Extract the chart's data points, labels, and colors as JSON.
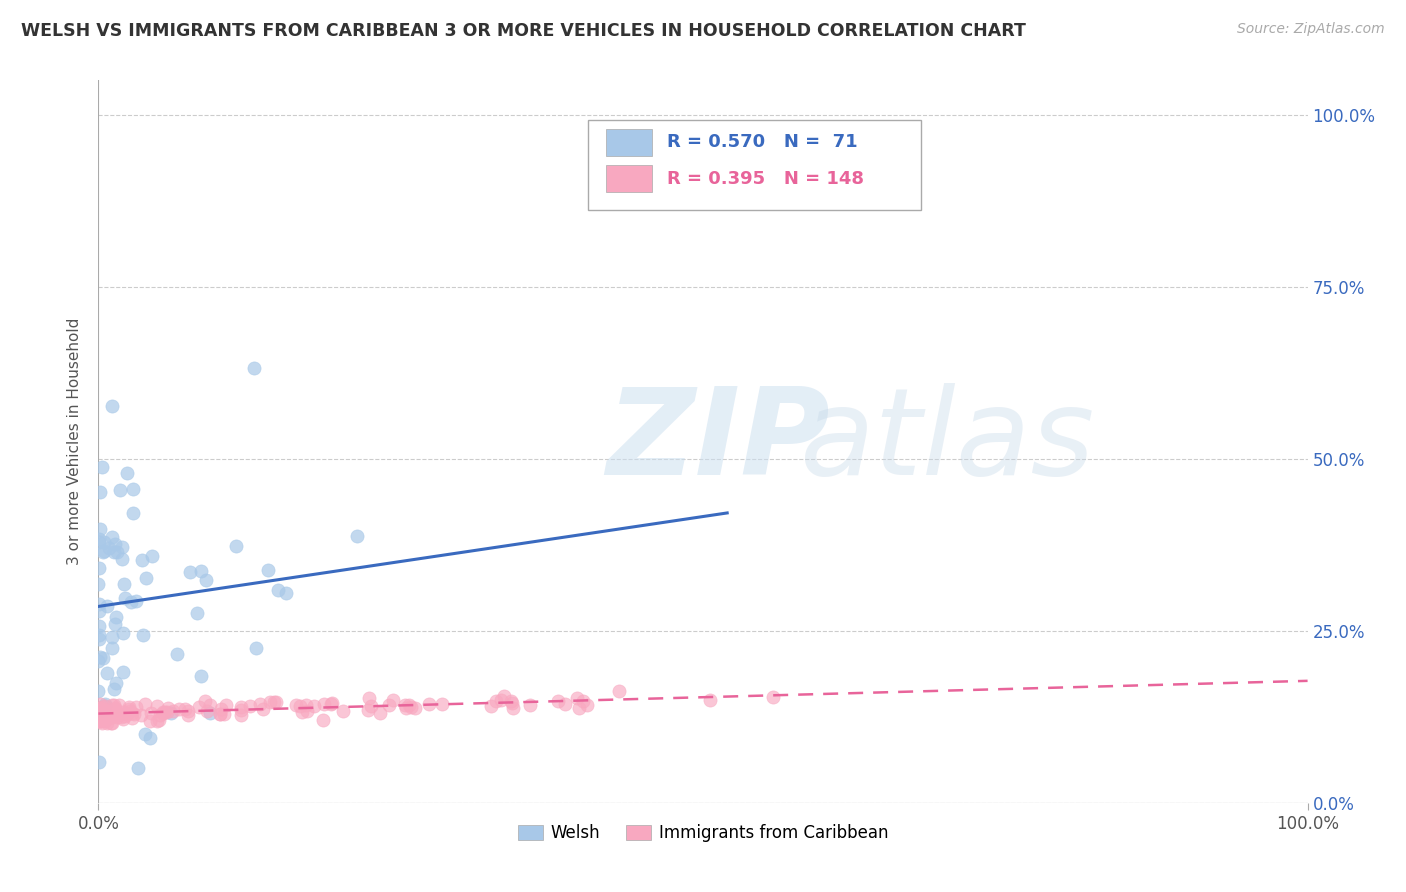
{
  "title": "WELSH VS IMMIGRANTS FROM CARIBBEAN 3 OR MORE VEHICLES IN HOUSEHOLD CORRELATION CHART",
  "source": "Source: ZipAtlas.com",
  "ylabel": "3 or more Vehicles in Household",
  "welsh_R": 0.57,
  "welsh_N": 71,
  "carib_R": 0.395,
  "carib_N": 148,
  "blue_scatter_color": "#a8c8e8",
  "pink_scatter_color": "#f8a8c0",
  "blue_line_color": "#3a6abf",
  "pink_line_color": "#e8649a",
  "legend_labels": [
    "Welsh",
    "Immigrants from Caribbean"
  ],
  "xlim": [
    0.0,
    1.0
  ],
  "ylim": [
    0.0,
    1.05
  ],
  "ytick_positions": [
    0.0,
    0.25,
    0.5,
    0.75,
    1.0
  ],
  "ytick_labels_right": [
    "0.0%",
    "25.0%",
    "50.0%",
    "75.0%",
    "100.0%"
  ],
  "xtick_positions": [
    0.0,
    1.0
  ],
  "xtick_labels": [
    "0.0%",
    "100.0%"
  ]
}
